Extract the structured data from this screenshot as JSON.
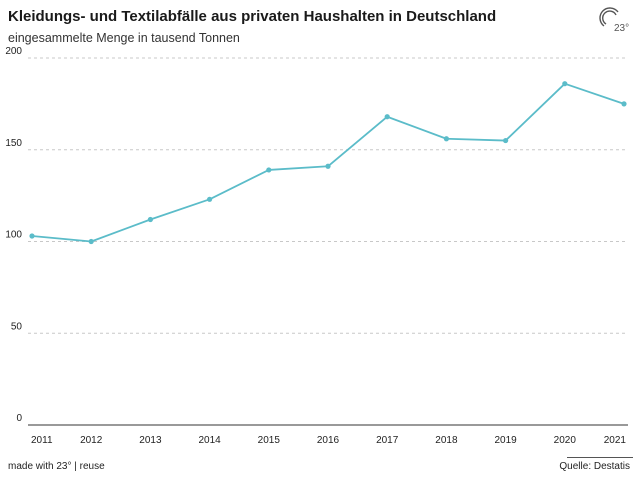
{
  "header": {
    "title": "Kleidungs- und Textilabfälle aus privaten Haushalten in Deutschland",
    "subtitle": "eingesammelte Menge in tausend Tonnen",
    "logo_text": "23°"
  },
  "footer": {
    "made_with": "made with 23° | reuse",
    "source": "Quelle: Destatis"
  },
  "colors": {
    "line": "#5bbcc9",
    "grid": "#c8c8c8",
    "axis": "#333333"
  },
  "chart_data": {
    "type": "line",
    "title": "Kleidungs- und Textilabfälle aus privaten Haushalten in Deutschland",
    "subtitle": "eingesammelte Menge in tausend Tonnen",
    "xlabel": "",
    "ylabel": "",
    "x": [
      "2011",
      "2012",
      "2013",
      "2014",
      "2015",
      "2016",
      "2017",
      "2018",
      "2019",
      "2020",
      "2021"
    ],
    "series": [
      {
        "values": [
          103,
          100,
          112,
          123,
          139,
          141,
          168,
          156,
          155,
          186,
          175
        ]
      }
    ],
    "ylim": [
      0,
      200
    ],
    "yticks": [
      0,
      50,
      100,
      150,
      200
    ],
    "grid": true,
    "legend": "none"
  }
}
